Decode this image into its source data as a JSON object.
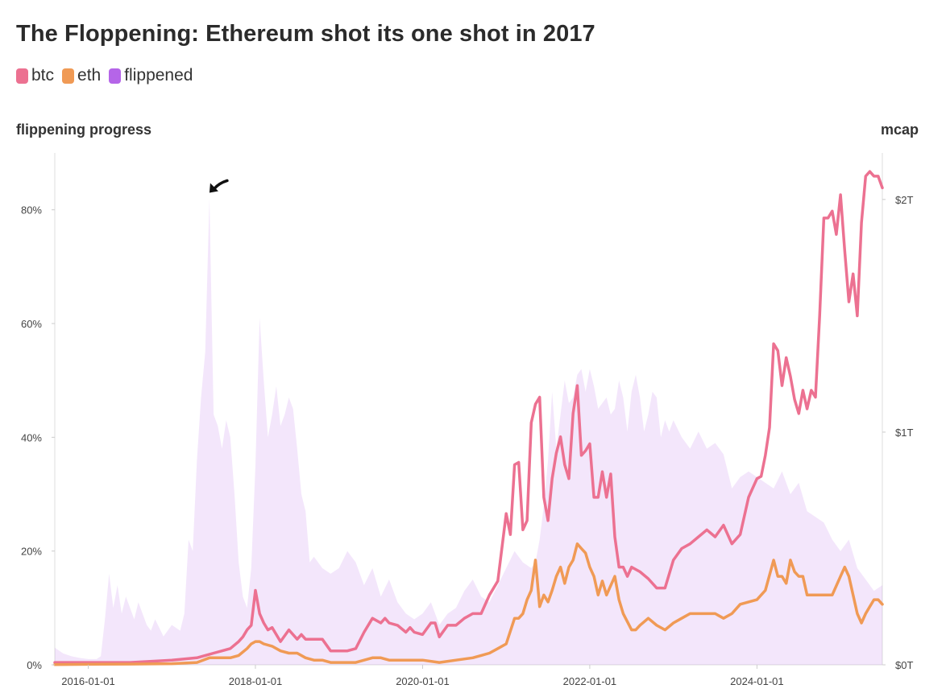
{
  "header": {
    "title": "The Floppening: Ethereum shot its one shot in 2017"
  },
  "legend": {
    "items": [
      {
        "label": "btc",
        "color": "#ec7191"
      },
      {
        "label": "eth",
        "color": "#f09a55"
      },
      {
        "label": "flippened",
        "color": "#b565e8"
      }
    ]
  },
  "chart_data": {
    "type": "line",
    "title": "The Floppening: Ethereum shot its one shot in 2017",
    "ylabel_left": "flippening progress",
    "ylabel_right": "mcap",
    "y_left_ticks": [
      "0%",
      "20%",
      "40%",
      "60%",
      "80%"
    ],
    "y_right_ticks": [
      "$0T",
      "$1T",
      "$2T"
    ],
    "x_ticks": [
      "2016-01-01",
      "2018-01-01",
      "2020-01-01",
      "2022-01-01",
      "2024-01-01"
    ],
    "ylim_left": [
      0,
      90
    ],
    "ylim_right": [
      0,
      2.2
    ],
    "xlim": [
      2015.6,
      2025.5
    ],
    "grid": false,
    "legend_position": "top-left",
    "annotation": {
      "x": 2017.45,
      "y": 83,
      "marker": "arrow"
    },
    "series": [
      {
        "name": "flippened",
        "axis": "left",
        "color": "#b565e8",
        "style": "area",
        "x": [
          2015.6,
          2015.7,
          2015.8,
          2015.9,
          2016.0,
          2016.1,
          2016.15,
          2016.2,
          2016.25,
          2016.3,
          2016.35,
          2016.4,
          2016.45,
          2016.5,
          2016.55,
          2016.6,
          2016.65,
          2016.7,
          2016.75,
          2016.8,
          2016.9,
          2017.0,
          2017.1,
          2017.15,
          2017.2,
          2017.25,
          2017.3,
          2017.35,
          2017.4,
          2017.45,
          2017.5,
          2017.55,
          2017.6,
          2017.65,
          2017.7,
          2017.75,
          2017.8,
          2017.85,
          2017.9,
          2017.95,
          2018.0,
          2018.05,
          2018.1,
          2018.15,
          2018.2,
          2018.25,
          2018.3,
          2018.35,
          2018.4,
          2018.45,
          2018.5,
          2018.55,
          2018.6,
          2018.65,
          2018.7,
          2018.8,
          2018.9,
          2019.0,
          2019.1,
          2019.2,
          2019.3,
          2019.4,
          2019.5,
          2019.6,
          2019.7,
          2019.8,
          2019.9,
          2020.0,
          2020.1,
          2020.2,
          2020.3,
          2020.4,
          2020.5,
          2020.6,
          2020.7,
          2020.8,
          2020.9,
          2021.0,
          2021.1,
          2021.2,
          2021.3,
          2021.35,
          2021.4,
          2021.45,
          2021.5,
          2021.55,
          2021.6,
          2021.65,
          2021.7,
          2021.75,
          2021.8,
          2021.85,
          2021.9,
          2021.95,
          2022.0,
          2022.05,
          2022.1,
          2022.15,
          2022.2,
          2022.25,
          2022.3,
          2022.35,
          2022.4,
          2022.45,
          2022.5,
          2022.55,
          2022.6,
          2022.65,
          2022.7,
          2022.75,
          2022.8,
          2022.85,
          2022.9,
          2022.95,
          2023.0,
          2023.1,
          2023.2,
          2023.3,
          2023.4,
          2023.5,
          2023.6,
          2023.7,
          2023.8,
          2023.9,
          2024.0,
          2024.1,
          2024.2,
          2024.3,
          2024.4,
          2024.5,
          2024.6,
          2024.7,
          2024.8,
          2024.9,
          2025.0,
          2025.1,
          2025.2,
          2025.3,
          2025.4,
          2025.5
        ],
        "values": [
          3,
          2,
          1.5,
          1.2,
          1,
          1,
          1.5,
          8,
          16,
          10,
          14,
          9,
          12,
          10,
          8,
          11,
          9,
          7,
          6,
          8,
          5,
          7,
          6,
          9,
          22,
          20,
          36,
          47,
          55,
          82,
          44,
          42,
          38,
          43,
          40,
          30,
          18,
          12,
          10,
          17,
          35,
          61,
          50,
          40,
          44,
          49,
          42,
          44,
          47,
          45,
          38,
          30,
          27,
          18,
          19,
          17,
          16,
          17,
          20,
          18,
          14,
          17,
          12,
          15,
          11,
          9,
          8,
          9,
          11,
          7,
          9,
          10,
          13,
          15,
          12,
          11,
          14,
          17,
          20,
          18,
          17,
          18,
          22,
          28,
          36,
          48,
          38,
          44,
          50,
          46,
          47,
          51,
          52,
          48,
          52,
          49,
          45,
          46,
          47,
          44,
          45,
          50,
          47,
          41,
          48,
          51,
          47,
          41,
          44,
          48,
          47,
          40,
          43,
          41,
          43,
          40,
          38,
          41,
          38,
          39,
          37,
          31,
          33,
          34,
          33,
          32,
          31,
          34,
          30,
          32,
          27,
          26,
          25,
          22,
          20,
          22,
          17,
          15,
          13,
          14
        ]
      },
      {
        "name": "btc",
        "axis": "right",
        "color": "#ec7191",
        "style": "line",
        "x": [
          2015.6,
          2016.0,
          2016.5,
          2017.0,
          2017.3,
          2017.4,
          2017.5,
          2017.6,
          2017.7,
          2017.8,
          2017.85,
          2017.9,
          2017.95,
          2018.0,
          2018.05,
          2018.1,
          2018.15,
          2018.2,
          2018.3,
          2018.4,
          2018.5,
          2018.55,
          2018.6,
          2018.7,
          2018.8,
          2018.9,
          2019.0,
          2019.1,
          2019.2,
          2019.3,
          2019.4,
          2019.5,
          2019.55,
          2019.6,
          2019.7,
          2019.8,
          2019.85,
          2019.9,
          2020.0,
          2020.1,
          2020.15,
          2020.2,
          2020.3,
          2020.4,
          2020.5,
          2020.6,
          2020.7,
          2020.8,
          2020.9,
          2021.0,
          2021.05,
          2021.1,
          2021.15,
          2021.2,
          2021.25,
          2021.3,
          2021.35,
          2021.4,
          2021.45,
          2021.5,
          2021.55,
          2021.6,
          2021.65,
          2021.7,
          2021.75,
          2021.8,
          2021.85,
          2021.9,
          2021.95,
          2022.0,
          2022.05,
          2022.1,
          2022.15,
          2022.2,
          2022.25,
          2022.3,
          2022.35,
          2022.4,
          2022.45,
          2022.5,
          2022.6,
          2022.7,
          2022.8,
          2022.9,
          2023.0,
          2023.1,
          2023.2,
          2023.3,
          2023.4,
          2023.5,
          2023.6,
          2023.7,
          2023.8,
          2023.9,
          2024.0,
          2024.05,
          2024.1,
          2024.15,
          2024.2,
          2024.25,
          2024.3,
          2024.35,
          2024.4,
          2024.45,
          2024.5,
          2024.55,
          2024.6,
          2024.65,
          2024.7,
          2024.75,
          2024.8,
          2024.85,
          2024.9,
          2024.95,
          2025.0,
          2025.05,
          2025.1,
          2025.15,
          2025.2,
          2025.25,
          2025.3,
          2025.35,
          2025.4,
          2025.45,
          2025.5
        ],
        "values": [
          0.01,
          0.01,
          0.01,
          0.02,
          0.03,
          0.04,
          0.05,
          0.06,
          0.07,
          0.1,
          0.12,
          0.15,
          0.17,
          0.32,
          0.22,
          0.18,
          0.15,
          0.16,
          0.1,
          0.15,
          0.11,
          0.13,
          0.11,
          0.11,
          0.11,
          0.06,
          0.06,
          0.06,
          0.07,
          0.14,
          0.2,
          0.18,
          0.2,
          0.18,
          0.17,
          0.14,
          0.16,
          0.14,
          0.13,
          0.18,
          0.18,
          0.12,
          0.17,
          0.17,
          0.2,
          0.22,
          0.22,
          0.3,
          0.36,
          0.65,
          0.56,
          0.86,
          0.87,
          0.58,
          0.62,
          1.04,
          1.12,
          1.15,
          0.72,
          0.62,
          0.8,
          0.91,
          0.98,
          0.86,
          0.8,
          1.08,
          1.2,
          0.9,
          0.92,
          0.95,
          0.72,
          0.72,
          0.83,
          0.72,
          0.82,
          0.55,
          0.42,
          0.42,
          0.38,
          0.42,
          0.4,
          0.37,
          0.33,
          0.33,
          0.45,
          0.5,
          0.52,
          0.55,
          0.58,
          0.55,
          0.6,
          0.52,
          0.56,
          0.72,
          0.8,
          0.81,
          0.9,
          1.02,
          1.38,
          1.35,
          1.2,
          1.32,
          1.24,
          1.14,
          1.08,
          1.18,
          1.1,
          1.18,
          1.15,
          1.5,
          1.92,
          1.92,
          1.95,
          1.85,
          2.02,
          1.78,
          1.56,
          1.68,
          1.5,
          1.9,
          2.1,
          2.12,
          2.1,
          2.1,
          2.05
        ]
      },
      {
        "name": "eth",
        "axis": "right",
        "color": "#f09a55",
        "style": "line",
        "x": [
          2015.6,
          2016.0,
          2016.5,
          2017.0,
          2017.3,
          2017.45,
          2017.6,
          2017.7,
          2017.8,
          2017.9,
          2017.95,
          2018.0,
          2018.05,
          2018.1,
          2018.2,
          2018.3,
          2018.4,
          2018.5,
          2018.6,
          2018.7,
          2018.8,
          2018.9,
          2019.0,
          2019.2,
          2019.4,
          2019.5,
          2019.6,
          2019.8,
          2020.0,
          2020.2,
          2020.4,
          2020.6,
          2020.7,
          2020.8,
          2020.9,
          2021.0,
          2021.1,
          2021.15,
          2021.2,
          2021.25,
          2021.3,
          2021.35,
          2021.4,
          2021.45,
          2021.5,
          2021.55,
          2021.6,
          2021.65,
          2021.7,
          2021.75,
          2021.8,
          2021.85,
          2021.9,
          2021.95,
          2022.0,
          2022.05,
          2022.1,
          2022.15,
          2022.2,
          2022.3,
          2022.35,
          2022.4,
          2022.5,
          2022.55,
          2022.6,
          2022.7,
          2022.8,
          2022.9,
          2023.0,
          2023.1,
          2023.2,
          2023.3,
          2023.4,
          2023.5,
          2023.6,
          2023.7,
          2023.8,
          2023.9,
          2024.0,
          2024.1,
          2024.2,
          2024.25,
          2024.3,
          2024.35,
          2024.4,
          2024.45,
          2024.5,
          2024.55,
          2024.6,
          2024.7,
          2024.8,
          2024.9,
          2025.0,
          2025.05,
          2025.1,
          2025.15,
          2025.2,
          2025.25,
          2025.3,
          2025.35,
          2025.4,
          2025.45,
          2025.5
        ],
        "values": [
          0.001,
          0.002,
          0.003,
          0.005,
          0.01,
          0.03,
          0.03,
          0.03,
          0.04,
          0.07,
          0.09,
          0.1,
          0.1,
          0.09,
          0.08,
          0.06,
          0.05,
          0.05,
          0.03,
          0.02,
          0.02,
          0.01,
          0.01,
          0.01,
          0.03,
          0.03,
          0.02,
          0.02,
          0.02,
          0.01,
          0.02,
          0.03,
          0.04,
          0.05,
          0.07,
          0.09,
          0.2,
          0.2,
          0.22,
          0.28,
          0.32,
          0.45,
          0.25,
          0.3,
          0.27,
          0.32,
          0.38,
          0.42,
          0.35,
          0.42,
          0.45,
          0.52,
          0.5,
          0.48,
          0.42,
          0.38,
          0.3,
          0.36,
          0.3,
          0.38,
          0.28,
          0.22,
          0.15,
          0.15,
          0.17,
          0.2,
          0.17,
          0.15,
          0.18,
          0.2,
          0.22,
          0.22,
          0.22,
          0.22,
          0.2,
          0.22,
          0.26,
          0.27,
          0.28,
          0.32,
          0.45,
          0.38,
          0.38,
          0.35,
          0.45,
          0.4,
          0.38,
          0.38,
          0.3,
          0.3,
          0.3,
          0.3,
          0.38,
          0.42,
          0.38,
          0.3,
          0.22,
          0.18,
          0.22,
          0.25,
          0.28,
          0.28,
          0.26
        ]
      }
    ]
  }
}
